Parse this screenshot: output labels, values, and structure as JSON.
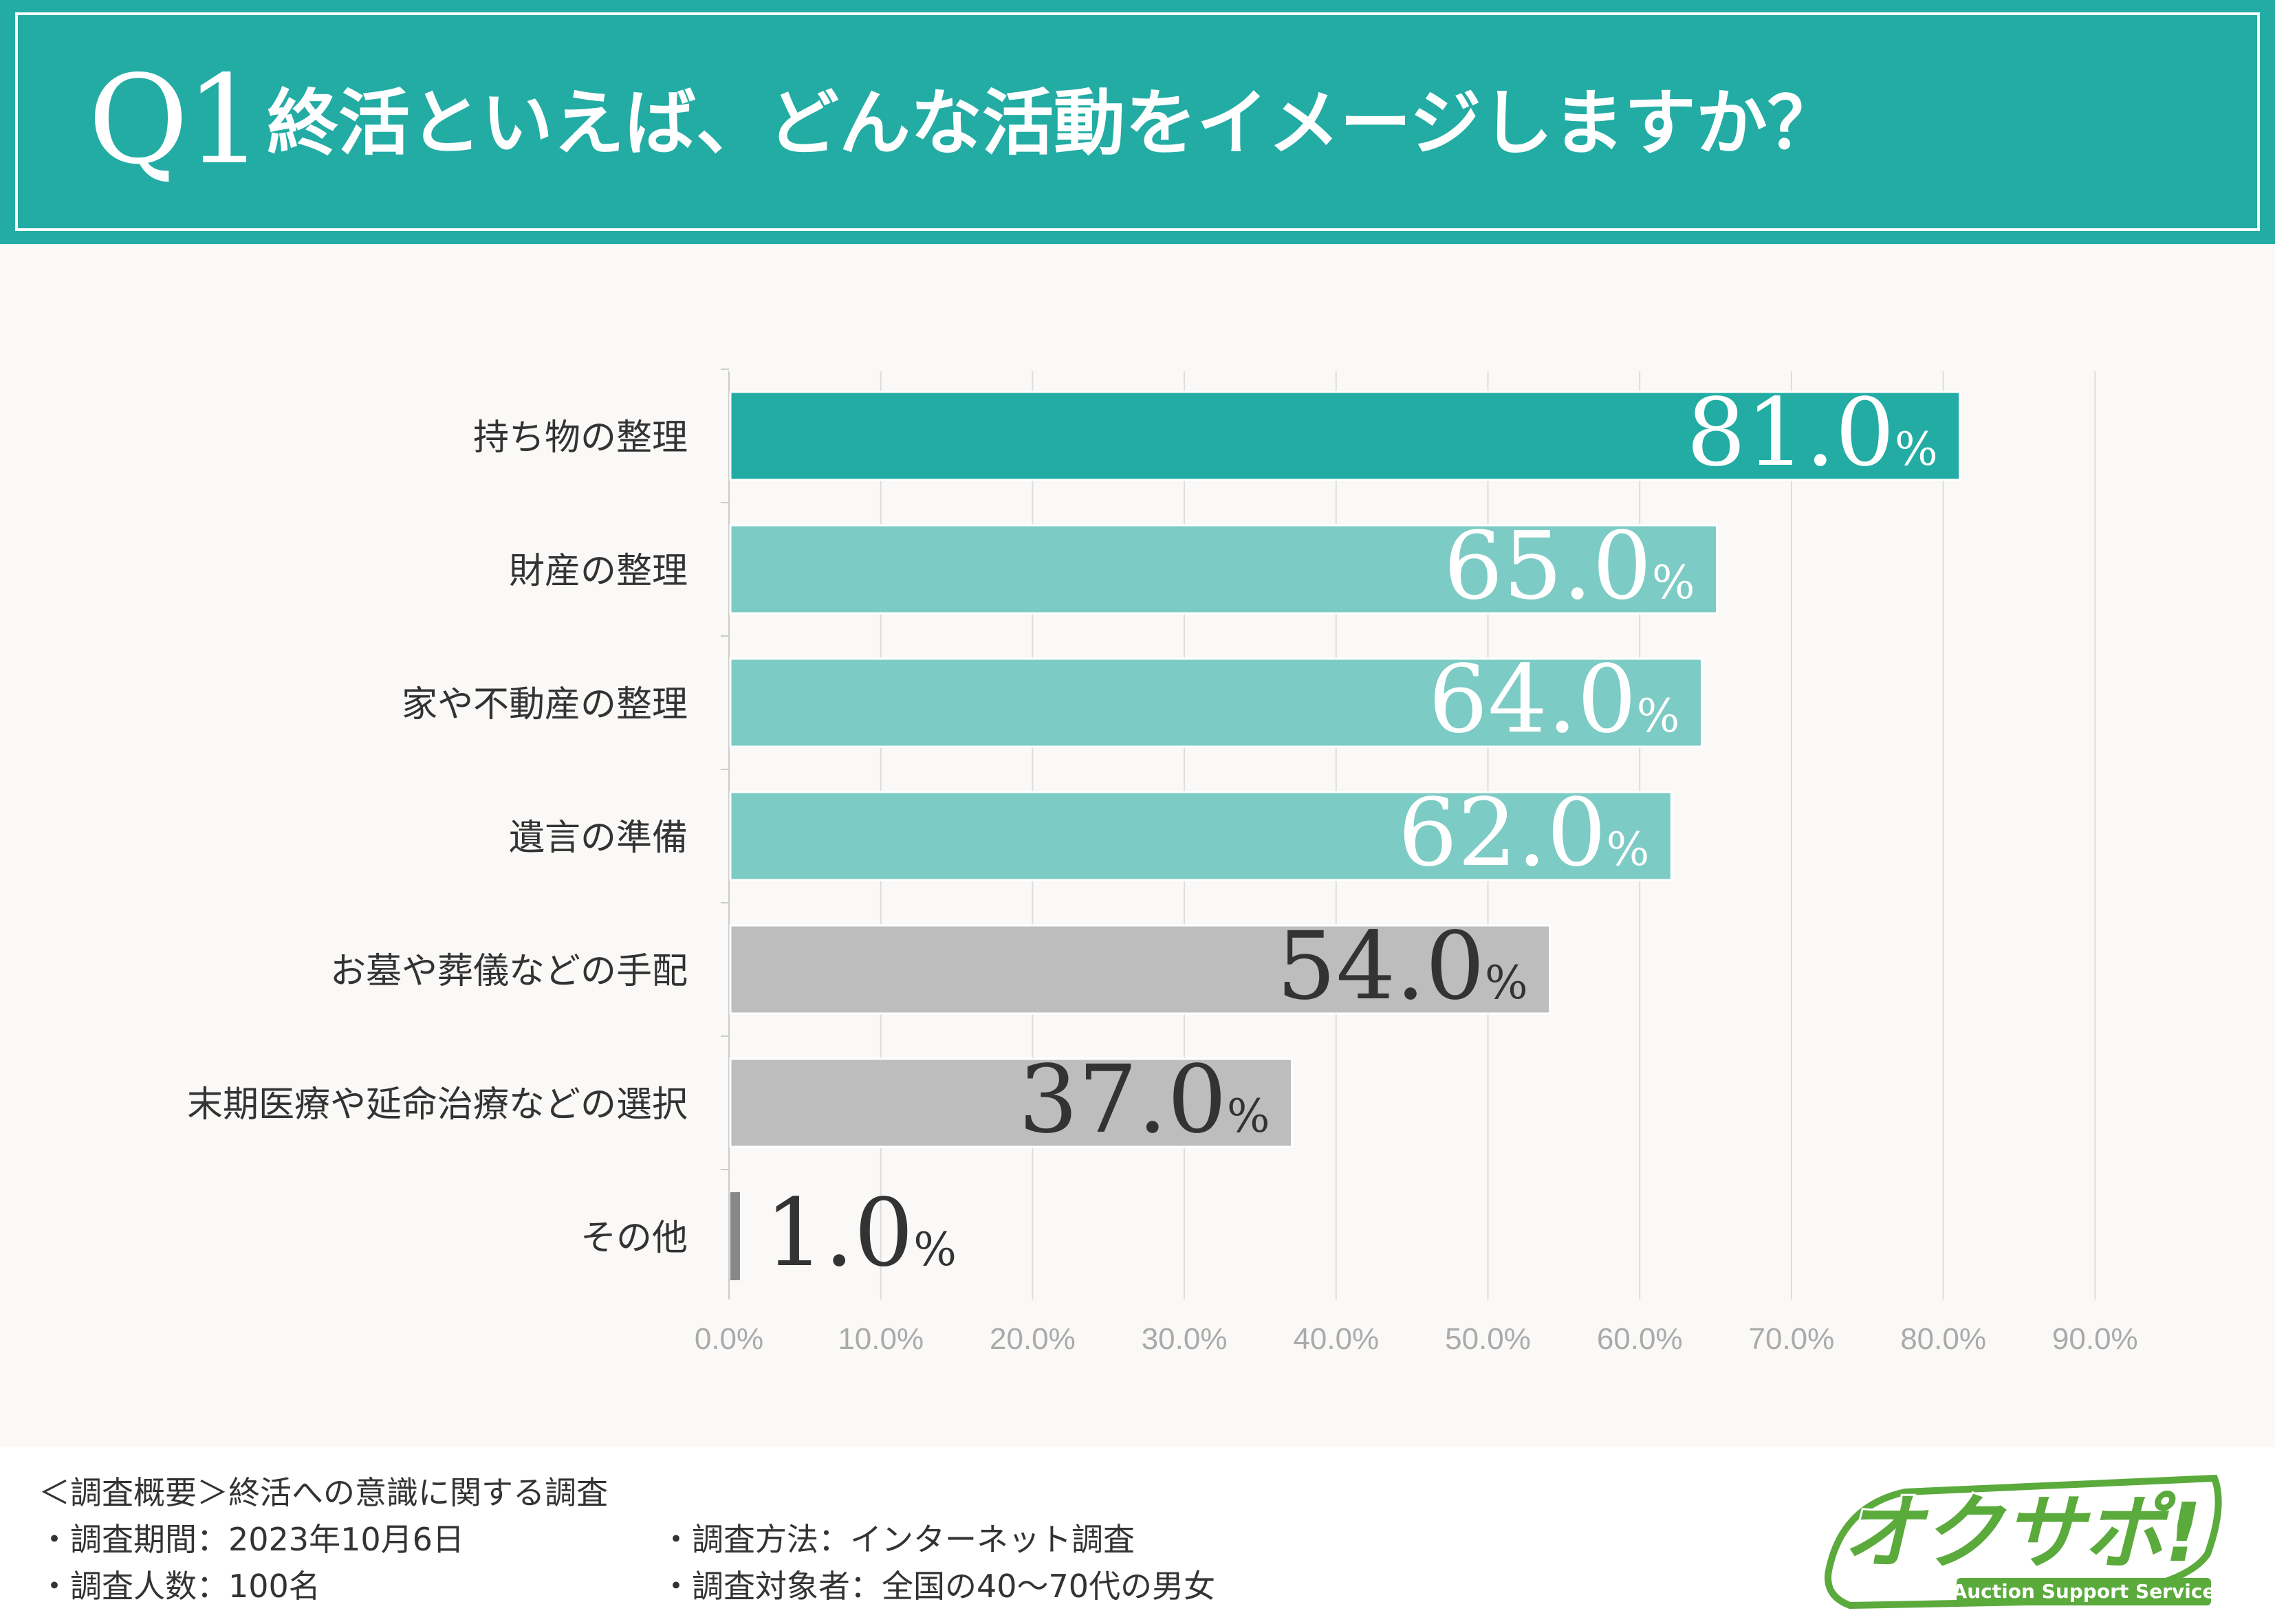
{
  "header": {
    "q_number": "Q1",
    "question": "終活といえば、どんな活動をイメージしますか？"
  },
  "colors": {
    "header_bg": "#22aca4",
    "top_bar": "#22aca4",
    "teal_light": "#7ccbc4",
    "gray_bar": "#bdbdbd",
    "gray_small": "#888888"
  },
  "chart_data": {
    "type": "bar",
    "orientation": "horizontal",
    "categories": [
      "持ち物の整理",
      "財産の整理",
      "家や不動産の整理",
      "遺言の準備",
      "お墓や葬儀などの手配",
      "末期医療や延命治療などの選択",
      "その他"
    ],
    "values": [
      81.0,
      65.0,
      64.0,
      62.0,
      54.0,
      37.0,
      1.0
    ],
    "value_labels": [
      "81.0",
      "65.0",
      "64.0",
      "62.0",
      "54.0",
      "37.0",
      "1.0"
    ],
    "value_unit": "%",
    "bar_colors": [
      "#22aca4",
      "#7ccbc4",
      "#7ccbc4",
      "#7ccbc4",
      "#bdbdbd",
      "#bdbdbd",
      "#888888"
    ],
    "label_colors": [
      "#ffffff",
      "#ffffff",
      "#ffffff",
      "#ffffff",
      "#333333",
      "#333333",
      "#333333"
    ],
    "xlim": [
      0,
      90
    ],
    "x_ticks": [
      "0.0%",
      "10.0%",
      "20.0%",
      "30.0%",
      "40.0%",
      "50.0%",
      "60.0%",
      "70.0%",
      "80.0%",
      "90.0%"
    ],
    "grid": true,
    "legend": "none"
  },
  "footer": {
    "survey_title": "＜調査概要＞終活への意識に関する調査",
    "period": "・調査期間：2023年10月6日",
    "method": "・調査方法：インターネット調査",
    "respondents": "・調査人数：100名",
    "target": "・調査対象者：全国の40〜70代の男女"
  },
  "logo": {
    "text": "オクサポ!",
    "subtitle": "Auction Support Service"
  }
}
